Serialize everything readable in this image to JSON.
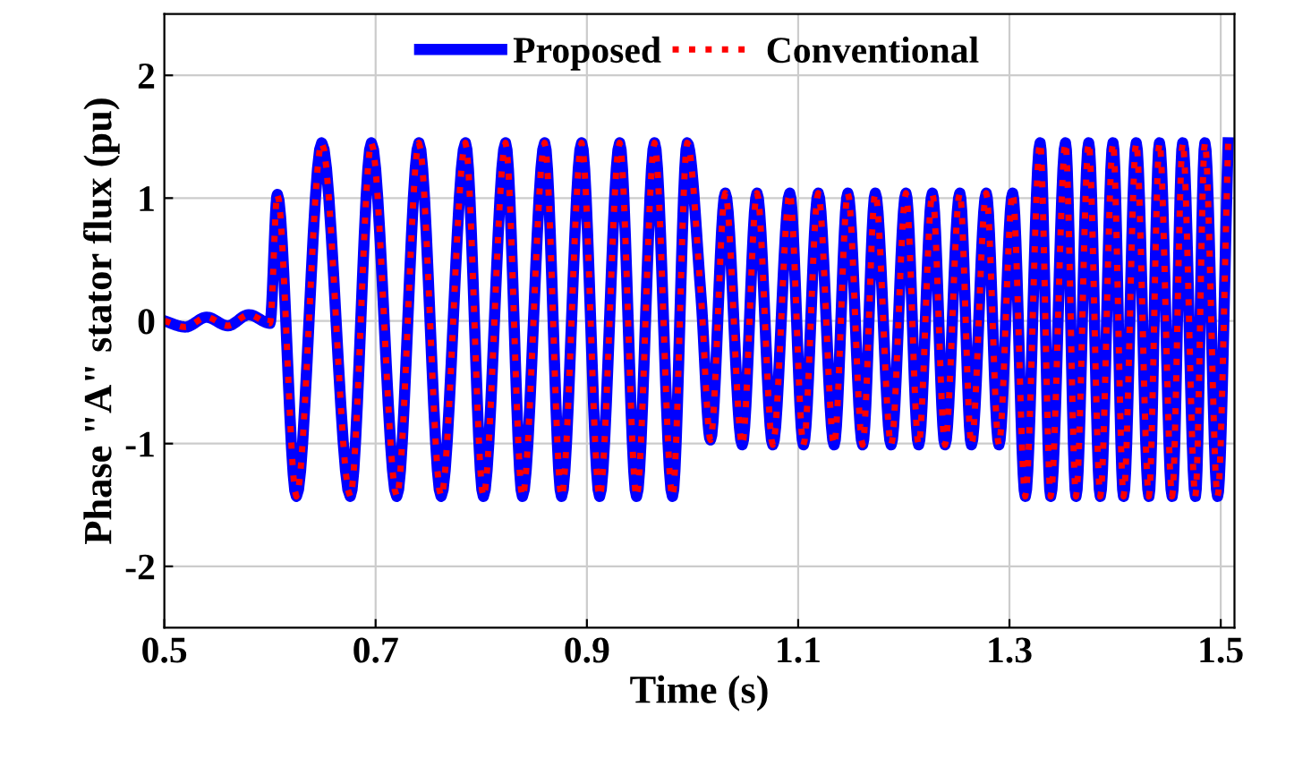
{
  "chart_data": {
    "type": "line",
    "xlabel": "Time (s)",
    "ylabel": "Phase \"A\" stator flux (pu)",
    "x": [
      0.5,
      0.52,
      0.54,
      0.56,
      0.58,
      0.6,
      0.607,
      0.625,
      0.649,
      0.676,
      0.696,
      0.72,
      0.741,
      0.762,
      0.785,
      0.802,
      0.823,
      0.839,
      0.86,
      0.876,
      0.895,
      0.912,
      0.931,
      0.947,
      0.964,
      0.981,
      0.995,
      1.008,
      1.017,
      1.031,
      1.047,
      1.061,
      1.076,
      1.092,
      1.105,
      1.119,
      1.134,
      1.147,
      1.161,
      1.173,
      1.188,
      1.202,
      1.214,
      1.227,
      1.239,
      1.253,
      1.264,
      1.278,
      1.29,
      1.303,
      1.315,
      1.329,
      1.339,
      1.353,
      1.363,
      1.375,
      1.386,
      1.398,
      1.408,
      1.42,
      1.432,
      1.442,
      1.454,
      1.464,
      1.476,
      1.485,
      1.497,
      1.507
    ],
    "series": [
      {
        "name": "Proposed",
        "color": "#0000ff",
        "line_style": "solid",
        "values": [
          0,
          -0.05,
          0.03,
          -0.04,
          0.05,
          -0.02,
          1.03,
          -1.43,
          1.45,
          -1.43,
          1.45,
          -1.43,
          1.45,
          -1.43,
          1.45,
          -1.43,
          1.45,
          -1.43,
          1.45,
          -1.43,
          1.45,
          -1.43,
          1.45,
          -1.43,
          1.45,
          -1.43,
          1.45,
          0.2,
          -0.97,
          1.04,
          -1.01,
          1.04,
          -1.01,
          1.04,
          -1.01,
          1.04,
          -1.01,
          1.04,
          -1.01,
          1.04,
          -1.01,
          1.04,
          -1.01,
          1.04,
          -1.01,
          1.04,
          -1.01,
          1.04,
          -1.01,
          1.04,
          -1.43,
          1.45,
          -1.43,
          1.45,
          -1.43,
          1.45,
          -1.43,
          1.45,
          -1.43,
          1.45,
          -1.43,
          1.45,
          -1.43,
          1.45,
          -1.43,
          1.45,
          -1.43,
          1.45
        ]
      },
      {
        "name": "Conventional",
        "color": "#ff0000",
        "line_style": "dotted",
        "values": [
          0,
          -0.05,
          0.03,
          -0.04,
          0.05,
          -0.02,
          1.03,
          -1.43,
          1.45,
          -1.43,
          1.45,
          -1.43,
          1.45,
          -1.43,
          1.45,
          -1.43,
          1.45,
          -1.43,
          1.45,
          -1.43,
          1.45,
          -1.43,
          1.45,
          -1.43,
          1.45,
          -1.43,
          1.45,
          0.2,
          -0.97,
          1.04,
          -1.01,
          1.04,
          -1.01,
          1.04,
          -1.01,
          1.04,
          -1.01,
          1.04,
          -1.01,
          1.04,
          -1.01,
          1.04,
          -1.01,
          1.04,
          -1.01,
          1.04,
          -1.01,
          1.04,
          -1.01,
          1.04,
          -1.43,
          1.45,
          -1.43,
          1.45,
          -1.43,
          1.45,
          -1.43,
          1.45,
          -1.43,
          1.45,
          -1.43,
          1.45,
          -1.43,
          1.45,
          -1.43,
          1.45,
          -1.43,
          1.45
        ]
      }
    ],
    "xlim": [
      0.5,
      1.513
    ],
    "xticks": [
      0.5,
      0.7,
      0.9,
      1.1,
      1.3,
      1.5
    ],
    "ylim": [
      -2.5,
      2.5
    ],
    "yticks": [
      -2,
      -1,
      0,
      1,
      2
    ],
    "grid": true,
    "legend": "top",
    "marker": "none"
  }
}
